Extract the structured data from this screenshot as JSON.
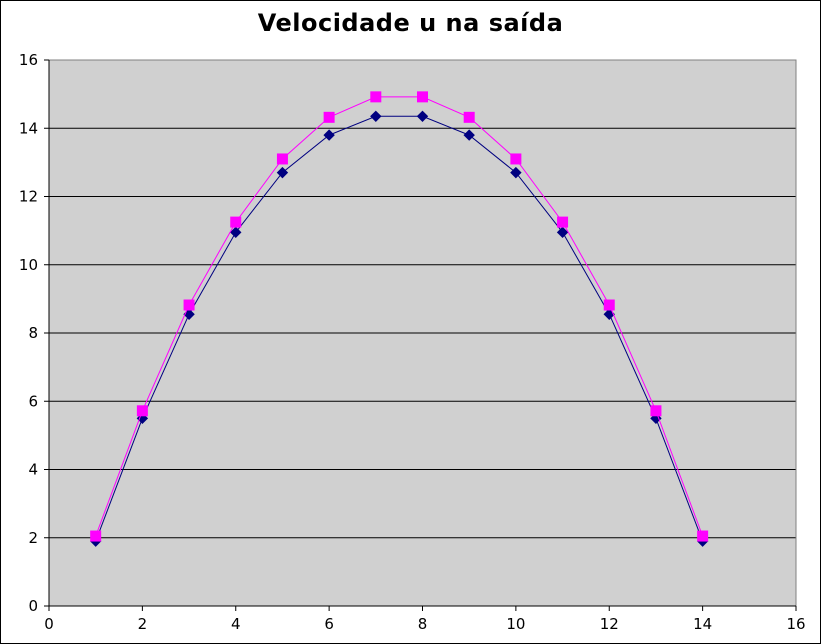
{
  "chart_data": {
    "type": "line",
    "title": "Velocidade u na saída",
    "xlabel": "",
    "ylabel": "",
    "xlim": [
      0,
      16
    ],
    "ylim": [
      0,
      16
    ],
    "xticks": [
      0,
      2,
      4,
      6,
      8,
      10,
      12,
      14,
      16
    ],
    "yticks": [
      0,
      2,
      4,
      6,
      8,
      10,
      12,
      14,
      16
    ],
    "grid": "horizontal",
    "legend": "none",
    "plot_background": "#d0d0d0",
    "series": [
      {
        "marker": "diamond",
        "color": "#000080",
        "x": [
          1,
          2,
          3,
          4,
          5,
          6,
          7,
          8,
          9,
          10,
          11,
          12,
          13,
          14
        ],
        "y": [
          1.9,
          5.5,
          8.55,
          10.95,
          12.7,
          13.8,
          14.35,
          14.35,
          13.8,
          12.7,
          10.95,
          8.55,
          5.5,
          1.9
        ]
      },
      {
        "marker": "square",
        "color": "#ff00ff",
        "x": [
          1,
          2,
          3,
          4,
          5,
          6,
          7,
          8,
          9,
          10,
          11,
          12,
          13,
          14
        ],
        "y": [
          2.05,
          5.72,
          8.82,
          11.25,
          13.1,
          14.32,
          14.92,
          14.92,
          14.32,
          13.1,
          11.25,
          8.82,
          5.72,
          2.05
        ]
      }
    ]
  }
}
